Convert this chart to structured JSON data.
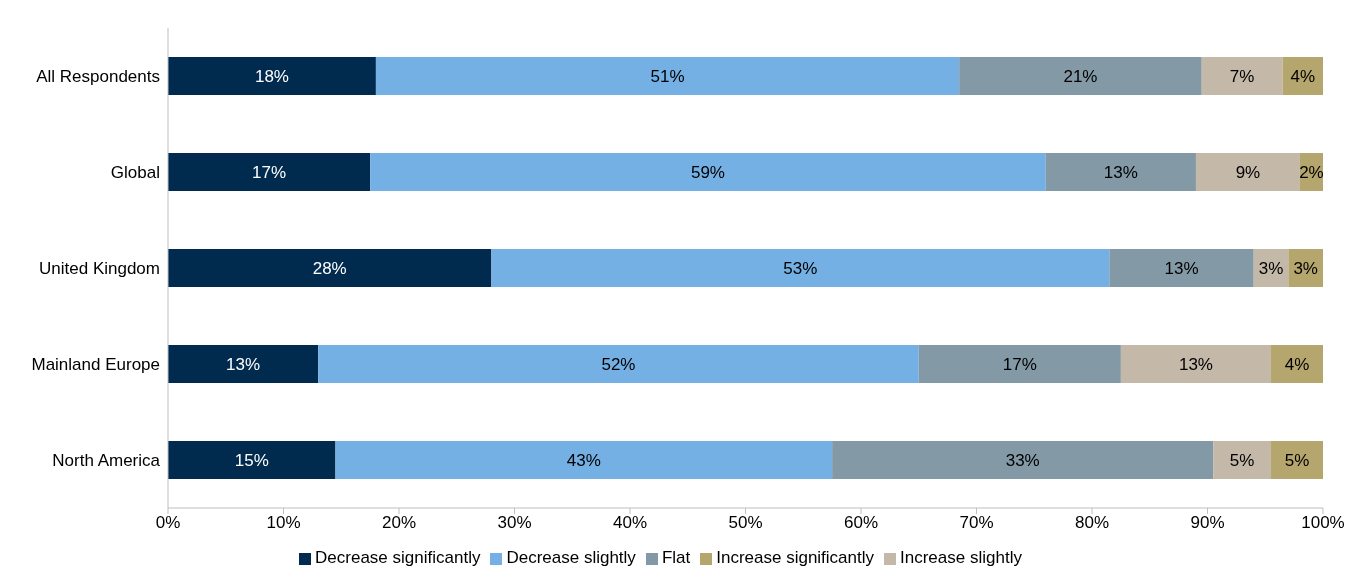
{
  "chart_data": {
    "type": "bar",
    "orientation": "horizontal",
    "stacked": true,
    "categories": [
      "All Respondents",
      "Global",
      "United Kingdom",
      "Mainland Europe",
      "North America"
    ],
    "series": [
      {
        "name": "Decrease significantly",
        "color": "#002a4e",
        "values": [
          18,
          17.5,
          28,
          13,
          14.5
        ],
        "value_labels": [
          "18%",
          "17%",
          "28%",
          "13%",
          "15%"
        ]
      },
      {
        "name": "Decrease slightly",
        "color": "#74b0e4",
        "values": [
          50.5,
          58.5,
          53.5,
          52,
          43
        ],
        "value_labels": [
          "51%",
          "59%",
          "53%",
          "52%",
          "43%"
        ]
      },
      {
        "name": "Flat",
        "color": "#8499a6",
        "values": [
          21,
          13,
          12.5,
          17.5,
          33
        ],
        "value_labels": [
          "21%",
          "13%",
          "13%",
          "17%",
          "33%"
        ]
      },
      {
        "name": "Increase slightly",
        "color": "#c4b8a8",
        "values": [
          7,
          9,
          3,
          13,
          5
        ],
        "value_labels": [
          "7%",
          "9%",
          "3%",
          "13%",
          "5%"
        ]
      },
      {
        "name": "Increase significantly",
        "color": "#b5a66d",
        "values": [
          3.5,
          2,
          3,
          4.5,
          4.5
        ],
        "value_labels": [
          "4%",
          "2%",
          "3%",
          "4%",
          "5%"
        ]
      }
    ],
    "xlim": [
      0,
      100
    ],
    "xticks": [
      {
        "value": 0,
        "label": "0%"
      },
      {
        "value": 10,
        "label": "10%"
      },
      {
        "value": 20,
        "label": "20%"
      },
      {
        "value": 30,
        "label": "30%"
      },
      {
        "value": 40,
        "label": "40%"
      },
      {
        "value": 50,
        "label": "50%"
      },
      {
        "value": 60,
        "label": "60%"
      },
      {
        "value": 70,
        "label": "70%"
      },
      {
        "value": 80,
        "label": "80%"
      },
      {
        "value": 90,
        "label": "90%"
      },
      {
        "value": 100,
        "label": "100%"
      }
    ],
    "grid": false,
    "legend": "bottom"
  }
}
